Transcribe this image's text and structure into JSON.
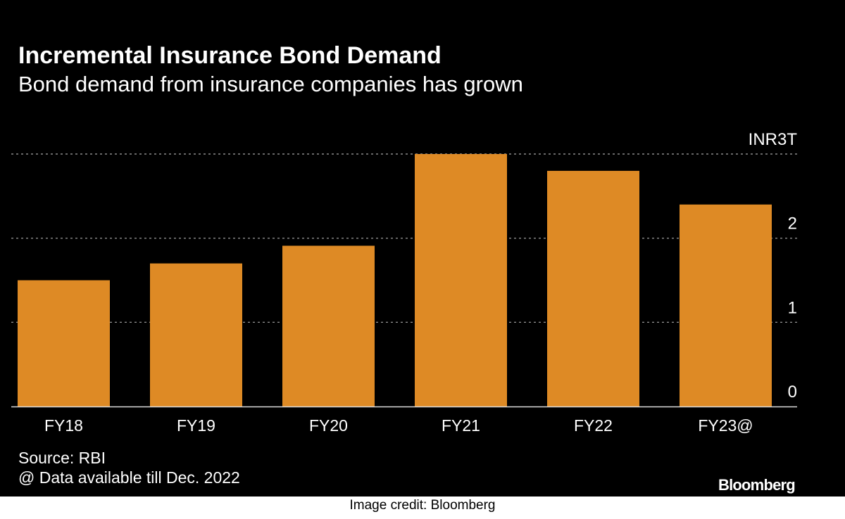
{
  "source_text": "Source: RBI",
  "note_text": "@ Data available till Dec. 2022",
  "logo_text": "Bloomberg",
  "credit_text": "Image credit: Bloomberg",
  "colors": {
    "background": "#000000",
    "bar": "#DE8A25",
    "text": "#FFFFFF",
    "grid": "#8C8C8C"
  },
  "chart_data": {
    "type": "bar",
    "title": "Incremental Insurance Bond Demand",
    "subtitle": "Bond demand from insurance companies has grown",
    "unit_label": "INR3T",
    "categories": [
      "FY18",
      "FY19",
      "FY20",
      "FY21",
      "FY22",
      "FY23@"
    ],
    "values": [
      1.5,
      1.7,
      1.91,
      3.0,
      2.8,
      2.4
    ],
    "ylim": [
      0,
      3
    ],
    "yticks": [
      0,
      1,
      2,
      3
    ],
    "ytick_labels": [
      "0",
      "1",
      "2",
      "INR3T"
    ],
    "xlabel": "",
    "ylabel": "",
    "grid": true
  }
}
